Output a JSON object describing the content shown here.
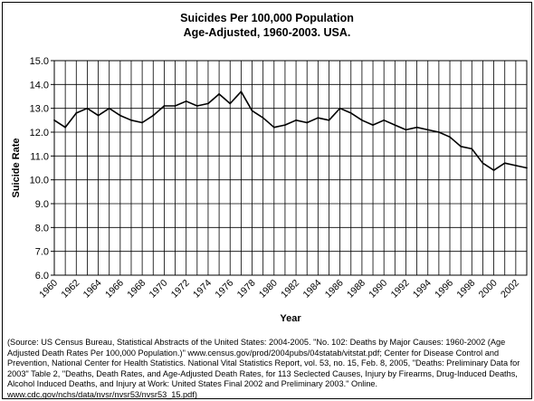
{
  "chart_data": {
    "type": "line",
    "title": "Suicides Per 100,000 Population",
    "subtitle": "Age-Adjusted, 1960-2003. USA.",
    "xlabel": "Year",
    "ylabel": "Suicide Rate",
    "ylim": [
      6.0,
      15.0
    ],
    "y_ticks": [
      "6.0",
      "7.0",
      "8.0",
      "9.0",
      "10.0",
      "11.0",
      "12.0",
      "13.0",
      "14.0",
      "15.0"
    ],
    "x_ticks": [
      "1960",
      "1962",
      "1964",
      "1966",
      "1968",
      "1970",
      "1972",
      "1974",
      "1976",
      "1978",
      "1980",
      "1982",
      "1984",
      "1986",
      "1988",
      "1990",
      "1992",
      "1994",
      "1996",
      "1998",
      "2000",
      "2002"
    ],
    "xlim": [
      1960,
      2003
    ],
    "grid": true,
    "legend": false,
    "line_color": "#000000",
    "series": [
      {
        "x": [
          1960,
          1961,
          1962,
          1963,
          1964,
          1965,
          1966,
          1967,
          1968,
          1969,
          1970,
          1971,
          1972,
          1973,
          1974,
          1975,
          1976,
          1977,
          1978,
          1979,
          1980,
          1981,
          1982,
          1983,
          1984,
          1985,
          1986,
          1987,
          1988,
          1989,
          1990,
          1991,
          1992,
          1993,
          1994,
          1995,
          1996,
          1997,
          1998,
          1999,
          2000,
          2001,
          2002,
          2003
        ],
        "values": [
          12.5,
          12.2,
          12.8,
          13.0,
          12.7,
          13.0,
          12.7,
          12.5,
          12.4,
          12.7,
          13.1,
          13.1,
          13.3,
          13.1,
          13.2,
          13.6,
          13.2,
          13.7,
          12.9,
          12.6,
          12.2,
          12.3,
          12.5,
          12.4,
          12.6,
          12.5,
          13.0,
          12.8,
          12.5,
          12.3,
          12.5,
          12.3,
          12.1,
          12.2,
          12.1,
          12.0,
          11.8,
          11.4,
          11.3,
          10.7,
          10.4,
          10.7,
          10.6,
          10.5
        ]
      }
    ]
  },
  "source_text": "(Source: US Census Bureau, Statistical Abstracts of the United States: 2004-2005. \"No. 102: Deaths by Major Causes: 1960-2002 (Age Adjusted Death Rates Per 100,000 Population.)\" www.census.gov/prod/2004pubs/04statab/vitstat.pdf; Center for Disease Control and Prevention, National Center for Health Statistics. National Vital Statistics Report, vol. 53, no. 15, Feb. 8, 2005, \"Deaths: Preliminary Data for 2003\" Table 2, \"Deaths, Death Rates, and Age-Adjusted Death Rates, for 113 Seclected Causes, Injury by Firearms, Drug-Induced Deaths, Alcohol Induced Deaths, and Injury at Work: United States Final 2002 and Preliminary 2003.\" Online. www.cdc.gov/nchs/data/nvsr/nvsr53/nvsr53_15.pdf)"
}
